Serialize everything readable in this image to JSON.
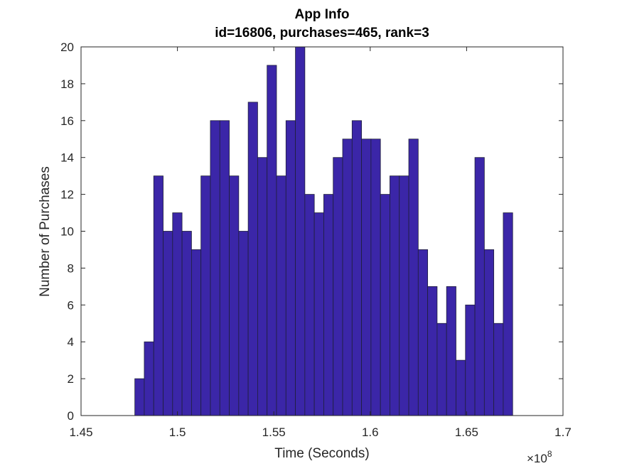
{
  "chart_data": {
    "type": "bar",
    "title": "App Info",
    "subtitle": "id=16806, purchases=465, rank=3",
    "xlabel": "Time (Seconds)",
    "ylabel": "Number of Purchases",
    "x_exponent_base": "×10",
    "x_exponent_power": "8",
    "xlim": [
      1.45,
      1.7
    ],
    "ylim": [
      0,
      20
    ],
    "xticks": [
      1.45,
      1.5,
      1.55,
      1.6,
      1.65,
      1.7
    ],
    "xtick_labels": [
      "1.45",
      "1.5",
      "1.55",
      "1.6",
      "1.65",
      "1.7"
    ],
    "yticks": [
      0,
      2,
      4,
      6,
      8,
      10,
      12,
      14,
      16,
      18,
      20
    ],
    "ytick_labels": [
      "0",
      "2",
      "4",
      "6",
      "8",
      "10",
      "12",
      "14",
      "16",
      "18",
      "20"
    ],
    "bin_start": 1.4779,
    "bin_width": 0.0049,
    "values": [
      2,
      4,
      13,
      10,
      11,
      10,
      9,
      13,
      16,
      16,
      13,
      10,
      17,
      14,
      19,
      13,
      16,
      20,
      12,
      11,
      12,
      14,
      15,
      16,
      15,
      15,
      12,
      13,
      13,
      15,
      9,
      7,
      5,
      7,
      3,
      6,
      14,
      9,
      5,
      11
    ],
    "grid": false,
    "colors": {
      "bar_fill": "#3b26a8",
      "bar_edge": "#1f1f3a",
      "axis": "#262626"
    }
  }
}
